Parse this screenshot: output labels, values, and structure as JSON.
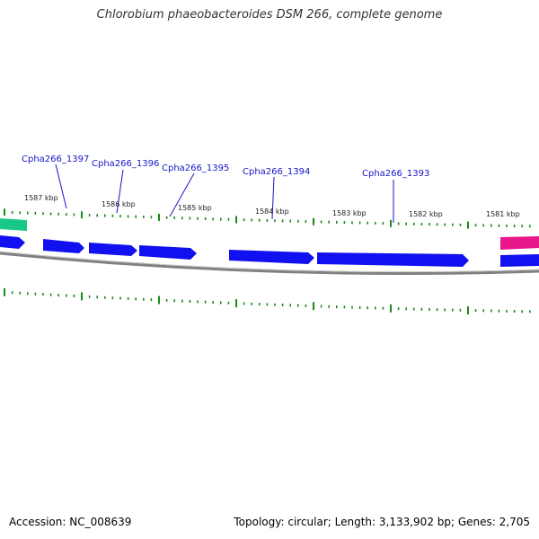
{
  "title": "Chlorobium phaeobacteroides DSM 266, complete genome",
  "footer": {
    "accession": "Accession: NC_008639",
    "meta": "Topology: circular; Length: 3,133,902 bp; Genes: 2,705"
  },
  "colors": {
    "gene_blue": "#1010f0",
    "gene_green": "#19c886",
    "gene_pink": "#e8188a",
    "tick_green": "#1a8a1a",
    "label_blue": "#1515c8",
    "backbone": "#808080"
  },
  "gene_labels": [
    "Cpha266_1397",
    "Cpha266_1396",
    "Cpha266_1395",
    "Cpha266_1394",
    "Cpha266_1393"
  ],
  "kbp_labels": [
    "1587 kbp",
    "1586 kbp",
    "1585 kbp",
    "1584 kbp",
    "1583 kbp",
    "1582 kbp",
    "1581 kbp"
  ]
}
